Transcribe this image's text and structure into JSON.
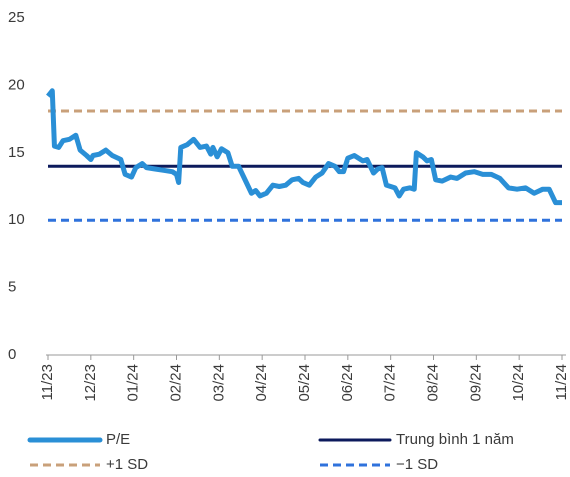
{
  "chart_data": {
    "type": "line",
    "xlim": [
      0,
      12
    ],
    "xticks": [
      {
        "value": 0,
        "label": "11/23"
      },
      {
        "value": 1,
        "label": "12/23"
      },
      {
        "value": 2,
        "label": "01/24"
      },
      {
        "value": 3,
        "label": "02/24"
      },
      {
        "value": 4,
        "label": "03/24"
      },
      {
        "value": 5,
        "label": "04/24"
      },
      {
        "value": 6,
        "label": "05/24"
      },
      {
        "value": 7,
        "label": "06/24"
      },
      {
        "value": 8,
        "label": "07/24"
      },
      {
        "value": 9,
        "label": "08/24"
      },
      {
        "value": 10,
        "label": "09/24"
      },
      {
        "value": 11,
        "label": "10/24"
      },
      {
        "value": 12,
        "label": "11/24"
      }
    ],
    "ylim": [
      0,
      25
    ],
    "yticks": [
      0,
      5,
      10,
      15,
      20,
      25
    ],
    "series": [
      {
        "name": "P/E",
        "color": "#2a8fd6",
        "line_width": 5,
        "dash": false,
        "x": [
          0,
          0.1,
          0.15,
          0.25,
          0.35,
          0.5,
          0.65,
          0.75,
          0.9,
          1.0,
          1.05,
          1.2,
          1.35,
          1.5,
          1.7,
          1.8,
          1.95,
          2.05,
          2.2,
          2.3,
          2.5,
          2.7,
          2.9,
          3.0,
          3.05,
          3.1,
          3.25,
          3.4,
          3.55,
          3.7,
          3.8,
          3.85,
          3.95,
          4.05,
          4.2,
          4.3,
          4.45,
          4.6,
          4.75,
          4.85,
          4.95,
          5.1,
          5.25,
          5.4,
          5.55,
          5.7,
          5.85,
          5.95,
          6.1,
          6.25,
          6.4,
          6.55,
          6.7,
          6.8,
          6.9,
          7.0,
          7.15,
          7.35,
          7.45,
          7.6,
          7.7,
          7.8,
          7.9,
          8.0,
          8.1,
          8.2,
          8.3,
          8.45,
          8.55,
          8.6,
          8.75,
          8.85,
          8.95,
          9.05,
          9.2,
          9.4,
          9.55,
          9.75,
          9.95,
          10.15,
          10.35,
          10.55,
          10.75,
          10.95,
          11.15,
          11.35,
          11.55,
          11.7,
          11.85,
          12.0
        ],
        "values": [
          19.2,
          19.6,
          15.5,
          15.4,
          15.9,
          16.0,
          16.3,
          15.2,
          14.8,
          14.5,
          14.8,
          14.9,
          15.2,
          14.8,
          14.5,
          13.4,
          13.2,
          13.9,
          14.2,
          13.9,
          13.8,
          13.7,
          13.6,
          13.4,
          12.8,
          15.4,
          15.6,
          16.0,
          15.4,
          15.5,
          14.9,
          15.4,
          14.7,
          15.3,
          15.0,
          14.0,
          14.0,
          13.0,
          12.0,
          12.2,
          11.8,
          12.0,
          12.6,
          12.5,
          12.6,
          13.0,
          13.1,
          12.8,
          12.6,
          13.2,
          13.5,
          14.2,
          14.0,
          13.6,
          13.6,
          14.6,
          14.8,
          14.4,
          14.5,
          13.5,
          13.8,
          13.9,
          12.6,
          12.5,
          12.4,
          11.8,
          12.3,
          12.4,
          12.3,
          15.0,
          14.7,
          14.4,
          14.5,
          13.0,
          12.9,
          13.2,
          13.1,
          13.5,
          13.6,
          13.4,
          13.4,
          13.1,
          12.4,
          12.3,
          12.4,
          12.0,
          12.3,
          12.3,
          11.3,
          11.3
        ]
      },
      {
        "name": "Trung bình 1 năm",
        "color": "#0c1a5c",
        "line_width": 3,
        "dash": false,
        "x": [
          0,
          12
        ],
        "values": [
          14,
          14
        ]
      },
      {
        "name": "+1 SD",
        "color": "#c9a07a",
        "line_width": 3,
        "dash": true,
        "x": [
          0,
          12
        ],
        "values": [
          18.1,
          18.1
        ]
      },
      {
        "name": "−1 SD",
        "color": "#2f72dc",
        "line_width": 3,
        "dash": true,
        "x": [
          0,
          12
        ],
        "values": [
          10,
          10
        ]
      }
    ]
  }
}
